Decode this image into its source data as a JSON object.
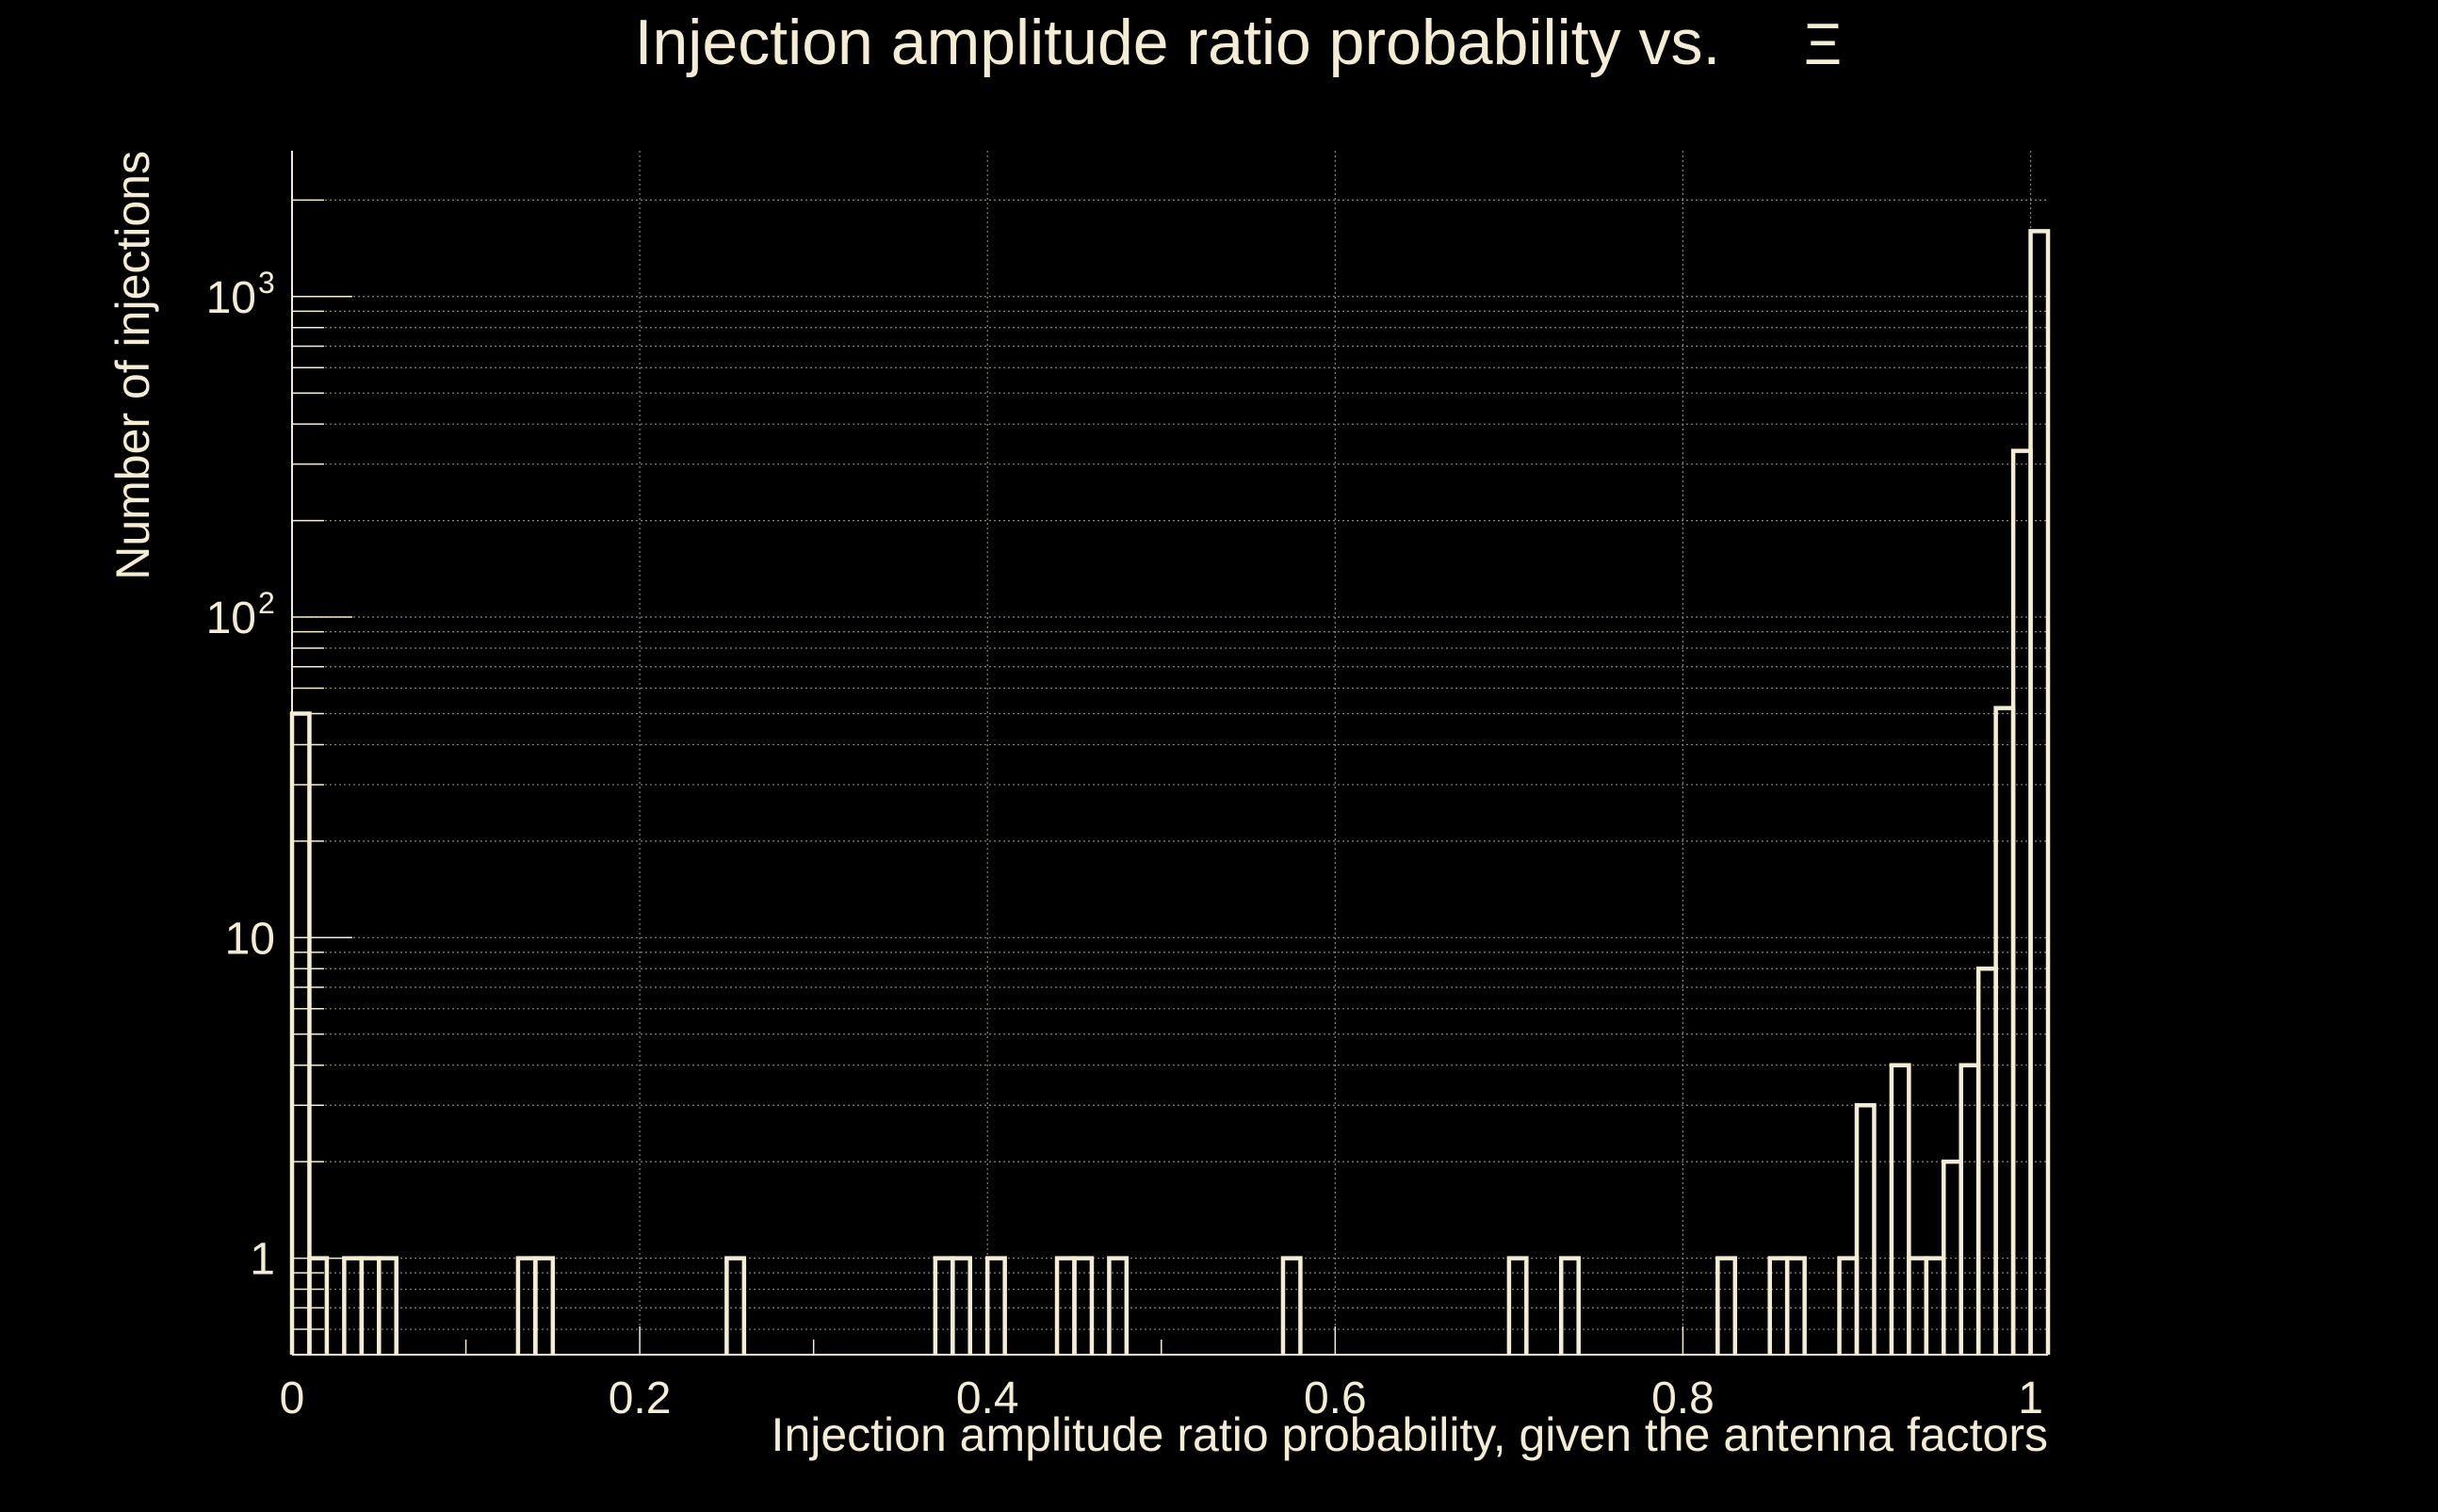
{
  "colors": {
    "background": "#000000",
    "foreground": "#F5ECD4",
    "grid": "#8A8578"
  },
  "chart_data": {
    "type": "histogram",
    "title": "Injection amplitude ratio probability vs.",
    "title_symbol": "Ξ",
    "xlabel": "Injection amplitude ratio probability, given the antenna factors",
    "ylabel": "Number of injections",
    "xlim": [
      0,
      1.01
    ],
    "ylim": [
      0.5,
      2850
    ],
    "yscale": "log",
    "grid": true,
    "x_ticks": [
      {
        "value": 0,
        "label": "0"
      },
      {
        "value": 0.2,
        "label": "0.2"
      },
      {
        "value": 0.4,
        "label": "0.4"
      },
      {
        "value": 0.6,
        "label": "0.6"
      },
      {
        "value": 0.8,
        "label": "0.8"
      },
      {
        "value": 1,
        "label": "1"
      }
    ],
    "y_ticks": [
      {
        "value": 1,
        "label": "1"
      },
      {
        "value": 10,
        "label": "10"
      },
      {
        "value": 100,
        "label": "10",
        "sup": "2"
      },
      {
        "value": 1000,
        "label": "10",
        "sup": "3"
      }
    ],
    "bin_width": 0.01,
    "bins": [
      {
        "x": 0.0,
        "count": 50
      },
      {
        "x": 0.01,
        "count": 1
      },
      {
        "x": 0.03,
        "count": 1
      },
      {
        "x": 0.04,
        "count": 1
      },
      {
        "x": 0.05,
        "count": 1
      },
      {
        "x": 0.13,
        "count": 1
      },
      {
        "x": 0.14,
        "count": 1
      },
      {
        "x": 0.25,
        "count": 1
      },
      {
        "x": 0.37,
        "count": 1
      },
      {
        "x": 0.38,
        "count": 1
      },
      {
        "x": 0.4,
        "count": 1
      },
      {
        "x": 0.44,
        "count": 1
      },
      {
        "x": 0.45,
        "count": 1
      },
      {
        "x": 0.47,
        "count": 1
      },
      {
        "x": 0.57,
        "count": 1
      },
      {
        "x": 0.7,
        "count": 1
      },
      {
        "x": 0.73,
        "count": 1
      },
      {
        "x": 0.82,
        "count": 1
      },
      {
        "x": 0.85,
        "count": 1
      },
      {
        "x": 0.86,
        "count": 1
      },
      {
        "x": 0.89,
        "count": 1
      },
      {
        "x": 0.9,
        "count": 3
      },
      {
        "x": 0.92,
        "count": 4
      },
      {
        "x": 0.93,
        "count": 1
      },
      {
        "x": 0.94,
        "count": 1
      },
      {
        "x": 0.95,
        "count": 2
      },
      {
        "x": 0.96,
        "count": 4
      },
      {
        "x": 0.97,
        "count": 8
      },
      {
        "x": 0.98,
        "count": 52
      },
      {
        "x": 0.99,
        "count": 330
      },
      {
        "x": 1.0,
        "count": 1600
      }
    ]
  }
}
